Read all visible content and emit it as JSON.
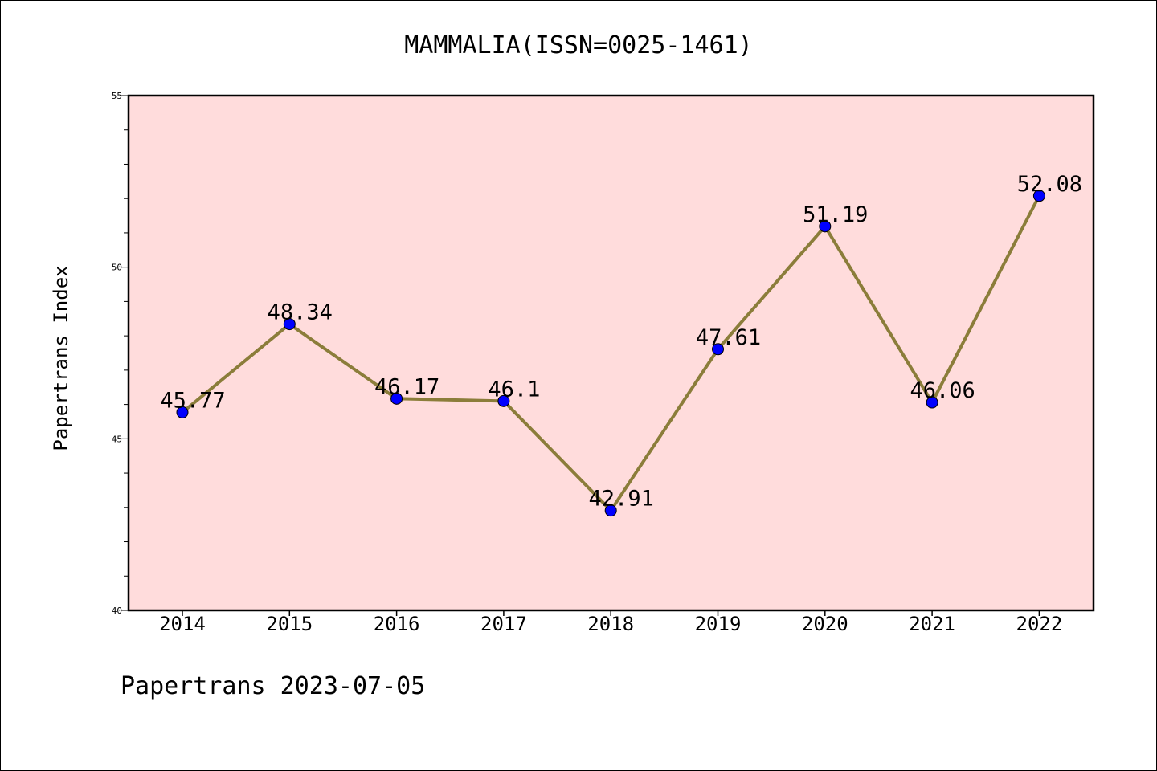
{
  "chart_data": {
    "type": "line",
    "title": "MAMMALIA(ISSN=0025-1461)",
    "xlabel": "",
    "ylabel": "Papertrans Index",
    "categories": [
      "2014",
      "2015",
      "2016",
      "2017",
      "2018",
      "2019",
      "2020",
      "2021",
      "2022"
    ],
    "series": [
      {
        "values": [
          45.77,
          48.34,
          46.17,
          46.1,
          42.91,
          47.61,
          51.19,
          46.06,
          52.08
        ],
        "labels": [
          "45.77",
          "48.34",
          "46.17",
          "46.1",
          "42.91",
          "47.61",
          "51.19",
          "46.06",
          "52.08"
        ]
      }
    ],
    "ylim": [
      40,
      55
    ],
    "yticks": [
      40,
      45,
      50,
      55
    ],
    "grid": false,
    "legend": "none",
    "colors": {
      "plot_background": "#ffdcdc",
      "line": "#8b7d3a",
      "marker": "#0000ff"
    }
  },
  "footer": "Papertrans 2023-07-05"
}
